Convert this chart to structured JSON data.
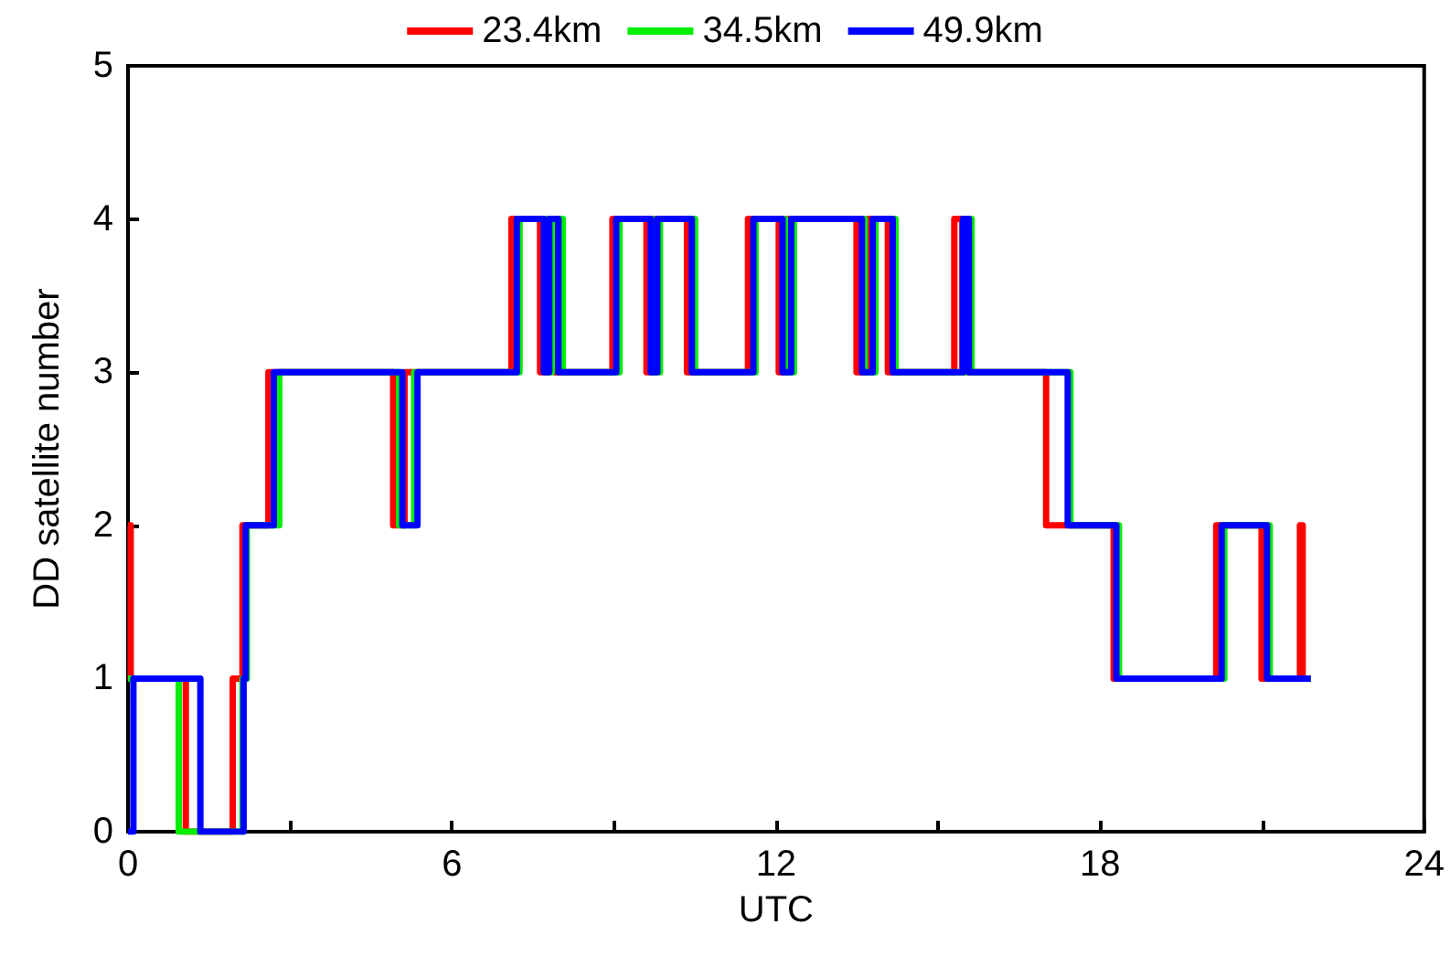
{
  "chart_data": {
    "type": "step",
    "xlabel": "UTC",
    "ylabel": "DD satellite number",
    "xlim": [
      0,
      24
    ],
    "xticks": [
      0,
      {
        "value": 3,
        "label": null
      },
      6,
      {
        "value": 9,
        "label": null
      },
      12,
      {
        "value": 15,
        "label": null
      },
      18,
      {
        "value": 21,
        "label": null
      },
      24
    ],
    "ylim": [
      0,
      5
    ],
    "yticks": [
      0,
      1,
      2,
      3,
      4,
      5
    ],
    "legend": "top",
    "grid": false,
    "marker": "none",
    "line_style": "solid",
    "series": [
      {
        "name": "23.4km",
        "color": "#ff0000",
        "x": [
          0,
          0.05,
          1.07,
          1.94,
          2.12,
          2.6,
          4.91,
          5.12,
          7.1,
          7.63,
          7.75,
          7.9,
          8.97,
          9.6,
          9.72,
          10.35,
          11.48,
          12.05,
          12.2,
          13.49,
          13.7,
          14.07,
          15.3,
          15.45,
          17.0,
          18.25,
          20.15,
          20.99,
          21.7,
          21.75,
          21.9
        ],
        "values": [
          2,
          1,
          0,
          1,
          2,
          3,
          2,
          3,
          4,
          3,
          4,
          3,
          4,
          3,
          4,
          3,
          4,
          3,
          4,
          3,
          4,
          3,
          4,
          3,
          2,
          1,
          2,
          1,
          2,
          1,
          1
        ]
      },
      {
        "name": "34.5km",
        "color": "#00ee00",
        "x": [
          0,
          0.94,
          2.12,
          2.2,
          2.8,
          5.02,
          5.3,
          7.25,
          7.75,
          7.85,
          8.05,
          9.1,
          9.72,
          9.85,
          10.5,
          11.62,
          12.17,
          12.33,
          13.64,
          13.84,
          14.21,
          15.52,
          15.62,
          17.45,
          18.35,
          20.3,
          21.14,
          21.9
        ],
        "values": [
          1,
          0,
          1,
          2,
          3,
          2,
          3,
          4,
          3,
          4,
          3,
          4,
          3,
          4,
          3,
          4,
          3,
          4,
          3,
          4,
          3,
          4,
          3,
          2,
          1,
          2,
          1,
          1
        ]
      },
      {
        "name": "49.9km",
        "color": "#0000ff",
        "x": [
          0,
          0.1,
          1.34,
          2.14,
          2.18,
          2.7,
          5.08,
          5.36,
          7.2,
          7.7,
          7.8,
          7.97,
          9.04,
          9.68,
          9.8,
          10.44,
          11.58,
          12.12,
          12.28,
          13.59,
          13.79,
          14.16,
          15.46,
          15.57,
          17.4,
          18.3,
          20.25,
          21.09,
          21.9
        ],
        "values": [
          0,
          1,
          0,
          1,
          2,
          3,
          2,
          3,
          4,
          3,
          4,
          3,
          4,
          3,
          4,
          3,
          4,
          3,
          4,
          3,
          4,
          3,
          4,
          3,
          2,
          1,
          2,
          1,
          1
        ]
      }
    ]
  }
}
